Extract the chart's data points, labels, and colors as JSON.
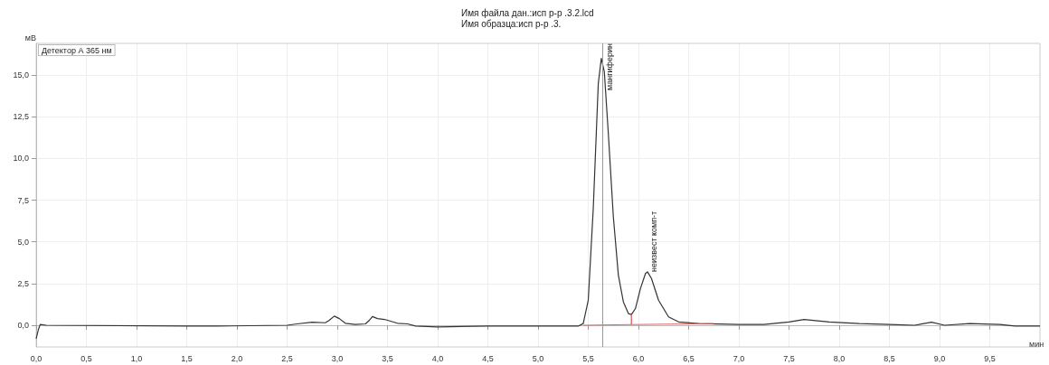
{
  "chart_data": {
    "type": "line",
    "title": "Имя файла дан.:исп р-р .3.2.lcd",
    "subtitle": "Имя образца:исп р-р .3.",
    "xlabel": "мин",
    "ylabel": "мВ",
    "annotations": [
      "Детектор А 365 нм",
      {
        "text": "мангиферин",
        "x": 5.64,
        "y": 16.0
      },
      {
        "text": "неизвест комп-т",
        "x": 6.09,
        "y": 3.2
      }
    ],
    "series": [
      {
        "color": "#333333",
        "x": [
          0.0,
          0.02,
          0.04,
          0.1,
          1.5,
          1.8,
          2.5,
          2.6,
          2.75,
          2.88,
          2.92,
          2.97,
          3.02,
          3.08,
          3.18,
          3.28,
          3.32,
          3.35,
          3.4,
          3.47,
          3.6,
          3.7,
          3.78,
          4.0,
          4.5,
          5.0,
          5.4,
          5.45,
          5.5,
          5.55,
          5.6,
          5.63,
          5.66,
          5.7,
          5.75,
          5.8,
          5.85,
          5.9,
          5.93,
          5.97,
          6.02,
          6.07,
          6.09,
          6.13,
          6.2,
          6.3,
          6.4,
          6.6,
          7.0,
          7.25,
          7.5,
          7.65,
          7.9,
          8.2,
          8.5,
          8.75,
          8.92,
          9.05,
          9.3,
          9.6,
          9.75,
          10.0
        ],
        "values": [
          -0.8,
          -0.3,
          0.05,
          0.0,
          -0.05,
          -0.05,
          0.0,
          0.08,
          0.18,
          0.15,
          0.3,
          0.55,
          0.4,
          0.12,
          0.05,
          0.08,
          0.3,
          0.52,
          0.4,
          0.35,
          0.12,
          0.08,
          -0.05,
          -0.1,
          -0.05,
          -0.05,
          -0.05,
          0.1,
          1.5,
          7.0,
          14.5,
          16.0,
          15.2,
          11.5,
          6.5,
          3.0,
          1.4,
          0.7,
          0.64,
          1.0,
          2.2,
          3.1,
          3.2,
          2.8,
          1.5,
          0.5,
          0.2,
          0.1,
          0.05,
          0.05,
          0.2,
          0.35,
          0.2,
          0.1,
          0.05,
          0.0,
          0.18,
          0.0,
          0.1,
          0.05,
          -0.05,
          -0.05
        ]
      },
      {
        "color": "#e06666",
        "x": [
          5.45,
          5.93,
          5.93,
          5.93,
          6.75
        ],
        "values": [
          0.0,
          0.04,
          0.64,
          0.04,
          0.1
        ]
      }
    ],
    "ref_lines": [
      {
        "axis": "x",
        "value": 5.64,
        "color": "#999999"
      }
    ],
    "xlim": [
      0,
      10.0
    ],
    "xticks": [
      {
        "value": 0,
        "label": "0,0"
      },
      {
        "value": 0.5,
        "label": "0,5"
      },
      {
        "value": 1,
        "label": "1,0"
      },
      {
        "value": 1.5,
        "label": "1,5"
      },
      {
        "value": 2,
        "label": "2,0"
      },
      {
        "value": 2.5,
        "label": "2,5"
      },
      {
        "value": 3,
        "label": "3,0"
      },
      {
        "value": 3.5,
        "label": "3,5"
      },
      {
        "value": 4,
        "label": "4,0"
      },
      {
        "value": 4.5,
        "label": "4,5"
      },
      {
        "value": 5,
        "label": "5,0"
      },
      {
        "value": 5.5,
        "label": "5,5"
      },
      {
        "value": 6,
        "label": "6,0"
      },
      {
        "value": 6.5,
        "label": "6,5"
      },
      {
        "value": 7,
        "label": "7,0"
      },
      {
        "value": 7.5,
        "label": "7,5"
      },
      {
        "value": 8,
        "label": "8,0"
      },
      {
        "value": 8.5,
        "label": "8,5"
      },
      {
        "value": 9,
        "label": "9,0"
      },
      {
        "value": 9.5,
        "label": "9,5"
      }
    ],
    "ylim": [
      -1.3,
      16.9
    ],
    "yticks": [
      {
        "value": 0,
        "label": "0,0"
      },
      {
        "value": 2.5,
        "label": "2,5"
      },
      {
        "value": 5,
        "label": "5,0"
      },
      {
        "value": 7.5,
        "label": "7,5"
      },
      {
        "value": 10,
        "label": "10,0"
      },
      {
        "value": 12.5,
        "label": "12,5"
      },
      {
        "value": 15,
        "label": "15,0"
      }
    ],
    "grid": true,
    "marker": "none",
    "line_style": "solid"
  }
}
